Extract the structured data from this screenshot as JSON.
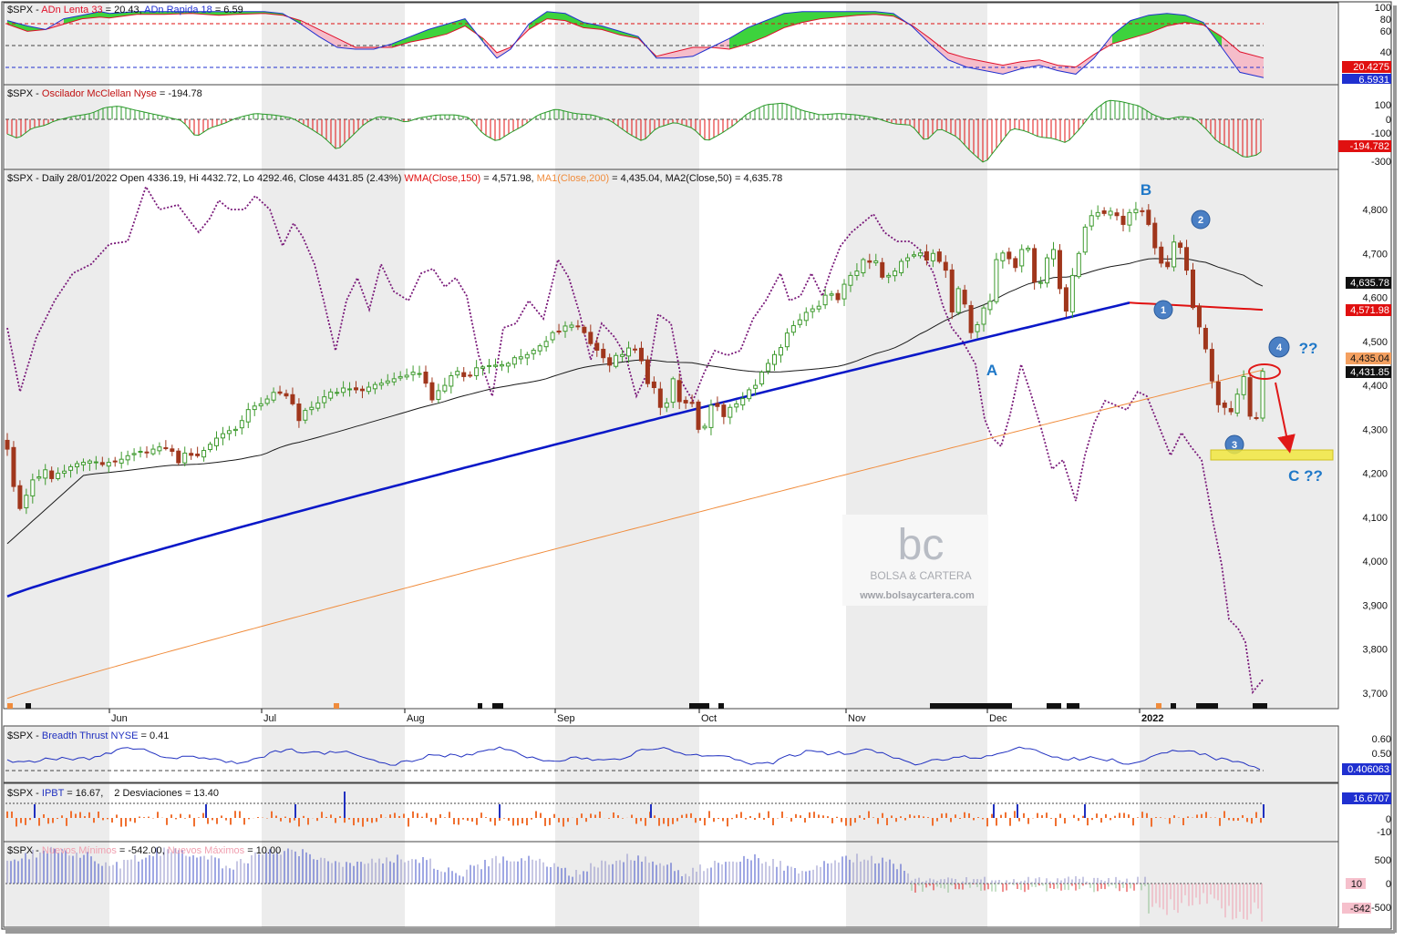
{
  "colors": {
    "up": "#3e9a2e",
    "down": "#a0361c",
    "wma150": "#0a18c8",
    "ma200": "#f08c3c",
    "ma50": "#1a1a1a",
    "dotted": "#7a1a7a",
    "adn_slow": "#e0102a",
    "adn_fast": "#2030d0",
    "mcclellan_up": "#2a9a2a",
    "mcclellan_down": "#e01010",
    "breadth": "#2030c0",
    "wave_label": "#1f78c8",
    "wave_circle": "#4a7fc4",
    "arrow": "#e01818",
    "target_zone": "#f2e840"
  },
  "panels": {
    "adn": {
      "header": {
        "prefix": "$SPX - ",
        "s1": "ADn Lenta 33",
        "s1v": " = 20.43, ",
        "s2": "ADn Rapida 18",
        "s2v": " = 6.59"
      },
      "ticks": [
        "100",
        "80",
        "60",
        "40",
        "20"
      ],
      "value1": "20.4275",
      "value2": "6.5931"
    },
    "mcclellan": {
      "header": {
        "prefix": "$SPX - ",
        "s1": "Oscilador McClellan Nyse",
        "s1v": " = -194.78"
      },
      "ticks": [
        "100",
        "0",
        "-100",
        "-200",
        "-300"
      ],
      "value": "-194.782"
    },
    "main": {
      "header": {
        "a": "$SPX - Daily 28/01/2022 Open 4336.19, Hi 4432.72, Lo 4292.46, Close 4431.85 (2.43%) ",
        "b": "WMA(Close,150)",
        "c": " = 4,571.98, ",
        "d": "MA1(Close,200)",
        "e": " = 4,435.04, MA2(Close,50) = 4,635.78"
      },
      "price_ticks": [
        "4,800",
        "4,700",
        "4,600",
        "4,500",
        "4,400",
        "4,300",
        "4,200",
        "4,100",
        "4,000",
        "3,900",
        "3,800",
        "3,700"
      ],
      "month_labels": [
        "Jun",
        "Jul",
        "Aug",
        "Sep",
        "Oct",
        "Nov",
        "Dec",
        "2022"
      ],
      "price_flags": {
        "ma50": "4,635.78",
        "wma150": "4,571.98",
        "ma200": "4,435.04",
        "close": "4,431.85"
      },
      "annotations": {
        "A": "A",
        "B": "B",
        "w1": "1",
        "w2": "2",
        "w3": "3",
        "w4": "4",
        "q4": "??",
        "C": "C ??"
      },
      "watermark": {
        "logo": "bc",
        "name": "BOLSA & CARTERA",
        "url": "www.bolsaycartera.com"
      }
    },
    "breadth": {
      "header": {
        "prefix": "$SPX - ",
        "s1": "Breadth Thrust NYSE",
        "s1v": " = 0.41"
      },
      "ticks": [
        "0.60",
        "0.50",
        "0.40"
      ],
      "value": "0.406063"
    },
    "ipbt": {
      "header": {
        "prefix": "$SPX - ",
        "s1": "IPBT",
        "s1v": " = 16.67,",
        "s2v": "2 Desviaciones = 13.40"
      },
      "ticks": [
        "10",
        "0",
        "-10"
      ],
      "value": "16.6707"
    },
    "highs_lows": {
      "header": {
        "prefix": "$SPX - ",
        "s1": "Nuevos Mínimos",
        "s1v": " = -542.00, ",
        "s2": "Nuevos Máximos",
        "s2v": " = 10.00"
      },
      "ticks": [
        "500",
        "0",
        "-500"
      ],
      "value_max": "10",
      "value_min": "-542"
    }
  },
  "chart_data": [
    {
      "type": "line",
      "title": "ADn Lenta 33 / ADn Rapida 18",
      "series": [
        {
          "name": "ADn Lenta 33",
          "last": 20.43
        },
        {
          "name": "ADn Rapida 18",
          "last": 6.59
        }
      ],
      "ylim": [
        0,
        100
      ]
    },
    {
      "type": "bar",
      "title": "Oscilador McClellan Nyse",
      "last": -194.78,
      "ylim": [
        -300,
        100
      ]
    },
    {
      "type": "candlestick",
      "title": "$SPX Daily",
      "last_bar": {
        "date": "28/01/2022",
        "open": 4336.19,
        "high": 4432.72,
        "low": 4292.46,
        "close": 4431.85,
        "change_pct": 2.43
      },
      "x": [
        "Jun",
        "Jul",
        "Aug",
        "Sep",
        "Oct",
        "Nov",
        "Dec",
        "2022"
      ],
      "ylim": [
        3680,
        4850
      ],
      "closes": [
        4255,
        4170,
        4120,
        4150,
        4185,
        4192,
        4208,
        4188,
        4200,
        4205,
        4215,
        4222,
        4225,
        4228,
        4226,
        4220,
        4225,
        4226,
        4232,
        4240,
        4245,
        4250,
        4247,
        4255,
        4260,
        4257,
        4250,
        4224,
        4246,
        4241,
        4240,
        4252,
        4266,
        4280,
        4290,
        4297,
        4300,
        4320,
        4345,
        4353,
        4358,
        4369,
        4384,
        4382,
        4376,
        4358,
        4320,
        4343,
        4350,
        4360,
        4374,
        4385,
        4384,
        4394,
        4392,
        4390,
        4388,
        4396,
        4402,
        4405,
        4410,
        4415,
        4420,
        4423,
        4430,
        4427,
        4405,
        4367,
        4388,
        4400,
        4422,
        4432,
        4420,
        4422,
        4440,
        4442,
        4445,
        4446,
        4447,
        4450,
        4463,
        4465,
        4470,
        4480,
        4490,
        4500,
        4520,
        4523,
        4535,
        4537,
        4534,
        4520,
        4495,
        4480,
        4463,
        4446,
        4468,
        4470,
        4485,
        4481,
        4456,
        4404,
        4395,
        4350,
        4360,
        4415,
        4363,
        4360,
        4359,
        4300,
        4307,
        4355,
        4352,
        4329,
        4350,
        4358,
        4370,
        4390,
        4400,
        4430,
        4450,
        4470,
        4486,
        4519,
        4536,
        4549,
        4566,
        4574,
        4580,
        4605,
        4608,
        4595,
        4630,
        4650,
        4660,
        4686,
        4680,
        4683,
        4646,
        4650,
        4660,
        4682,
        4690,
        4697,
        4701,
        4685,
        4700,
        4682,
        4662,
        4567,
        4620,
        4585,
        4520,
        4538,
        4576,
        4591,
        4686,
        4701,
        4688,
        4668,
        4709,
        4712,
        4635,
        4634,
        4690,
        4709,
        4620,
        4569,
        4650,
        4700,
        4760,
        4786,
        4793,
        4791,
        4796,
        4786,
        4766,
        4793,
        4800,
        4796,
        4766,
        4713,
        4678,
        4670,
        4726,
        4714,
        4662,
        4577,
        4533,
        4483,
        4410,
        4356,
        4350,
        4340,
        4380,
        4420,
        4330,
        4326,
        4431.85
      ],
      "series": [
        {
          "name": "WMA(Close,150)",
          "last": 4571.98
        },
        {
          "name": "MA1(Close,200)",
          "last": 4435.04
        },
        {
          "name": "MA2(Close,50)",
          "last": 4635.78
        }
      ],
      "annotations": [
        {
          "label": "A",
          "x": "late Nov",
          "y": 4470
        },
        {
          "label": "B",
          "x": "early Jan",
          "y": 4820
        },
        {
          "label": "1",
          "y": 4590
        },
        {
          "label": "2",
          "y": 4790
        },
        {
          "label": "3",
          "y": 4265
        },
        {
          "label": "4",
          "y": 4500
        },
        {
          "label": "C ??",
          "y": 4205
        }
      ],
      "target_zone": [
        4230,
        4250
      ]
    },
    {
      "type": "line",
      "title": "Breadth Thrust NYSE",
      "last": 0.41,
      "ylim": [
        0.38,
        0.62
      ]
    },
    {
      "type": "bar",
      "title": "IPBT",
      "last": 16.67,
      "deviation": 13.4,
      "ylim": [
        -15,
        25
      ]
    },
    {
      "type": "bar",
      "title": "Nuevos Mínimos / Nuevos Máximos",
      "series": [
        {
          "name": "Nuevos Mínimos",
          "last": -542
        },
        {
          "name": "Nuevos Máximos",
          "last": 10
        }
      ],
      "ylim": [
        -700,
        700
      ]
    }
  ]
}
